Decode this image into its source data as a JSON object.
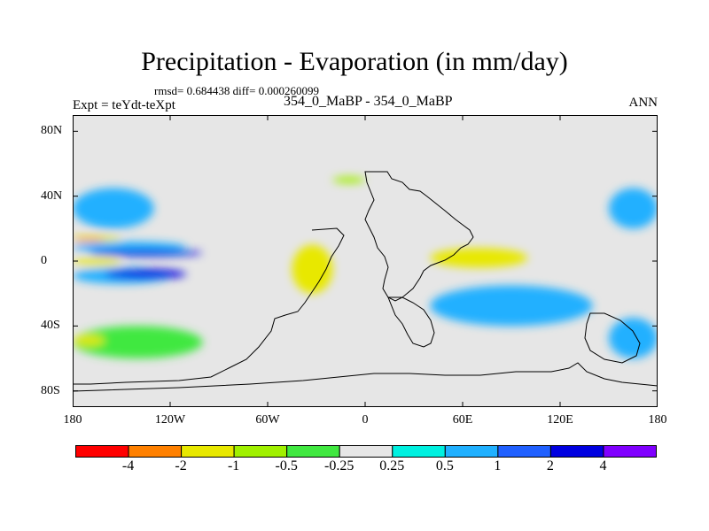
{
  "chart_data": {
    "type": "heatmap",
    "title": "Precipitation - Evaporation (in mm/day)",
    "stats": "rmsd= 0.684438 diff= 0.000260099",
    "experiment": "Expt = teYdt-teXpt",
    "subtitle": "354_0_MaBP - 354_0_MaBP",
    "season": "ANN",
    "xlim": [
      -180,
      180
    ],
    "ylim": [
      -90,
      90
    ],
    "xticks": [
      {
        "value": -180,
        "label": "180"
      },
      {
        "value": -120,
        "label": "120W"
      },
      {
        "value": -60,
        "label": "60W"
      },
      {
        "value": 0,
        "label": "0"
      },
      {
        "value": 60,
        "label": "60E"
      },
      {
        "value": 120,
        "label": "120E"
      },
      {
        "value": 180,
        "label": "180"
      }
    ],
    "yticks": [
      {
        "value": 80,
        "label": "80N"
      },
      {
        "value": 40,
        "label": "40N"
      },
      {
        "value": 0,
        "label": "0"
      },
      {
        "value": -40,
        "label": "40S"
      },
      {
        "value": -80,
        "label": "80S"
      }
    ],
    "colorbar": {
      "colors": [
        "#ff0000",
        "#ff8000",
        "#e8e800",
        "#a0f000",
        "#40e840",
        "#e6e6e6",
        "#00f0e0",
        "#20b0ff",
        "#2060ff",
        "#0000e0",
        "#8000ff"
      ],
      "labels": [
        "-4",
        "-2",
        "-1",
        "-0.5",
        "-0.25",
        "0.25",
        "0.5",
        "1",
        "2",
        "4"
      ]
    },
    "fields": [
      {
        "level": "0.5",
        "lon": [
          -180,
          -110
        ],
        "lat": [
          5,
          12
        ]
      },
      {
        "level": "2",
        "lon": [
          -170,
          -100
        ],
        "lat": [
          3,
          7
        ]
      },
      {
        "level": "-1",
        "lon": [
          -180,
          -150
        ],
        "lat": [
          12,
          16
        ]
      },
      {
        "level": "-2",
        "lon": [
          -180,
          -160
        ],
        "lat": [
          12,
          14
        ]
      },
      {
        "level": "0.5",
        "lon": [
          -180,
          -120
        ],
        "lat": [
          -14,
          -4
        ]
      },
      {
        "level": "2",
        "lon": [
          -160,
          -110
        ],
        "lat": [
          -11,
          -5
        ]
      },
      {
        "level": "-1",
        "lon": [
          -180,
          -150
        ],
        "lat": [
          -3,
          2
        ]
      },
      {
        "level": "-1",
        "lon": [
          -45,
          -20
        ],
        "lat": [
          -20,
          10
        ]
      },
      {
        "level": "-0.5",
        "lon": [
          -20,
          0
        ],
        "lat": [
          48,
          52
        ]
      },
      {
        "level": "-2",
        "lon": [
          65,
          95
        ],
        "lat": [
          0,
          4
        ]
      },
      {
        "level": "-1",
        "lon": [
          40,
          100
        ],
        "lat": [
          -4,
          8
        ]
      },
      {
        "level": "0.5",
        "lon": [
          -180,
          -130
        ],
        "lat": [
          20,
          45
        ]
      },
      {
        "level": "0.5",
        "lon": [
          150,
          180
        ],
        "lat": [
          20,
          45
        ]
      },
      {
        "level": "-0.25",
        "lon": [
          -180,
          -100
        ],
        "lat": [
          -60,
          -40
        ]
      },
      {
        "level": "-1",
        "lon": [
          -180,
          -160
        ],
        "lat": [
          -52,
          -46
        ]
      },
      {
        "level": "0.5",
        "lon": [
          40,
          140
        ],
        "lat": [
          -40,
          -15
        ]
      },
      {
        "level": "0.5",
        "lon": [
          150,
          180
        ],
        "lat": [
          -60,
          -35
        ]
      }
    ]
  }
}
